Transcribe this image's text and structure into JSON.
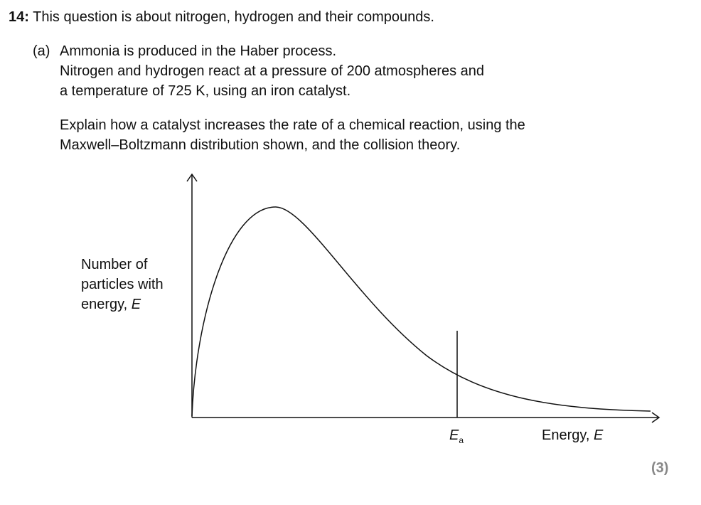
{
  "question": {
    "number": "14:",
    "stem": "This question is about nitrogen, hydrogen and their compounds.",
    "part": {
      "label": "(a)",
      "lines": [
        "Ammonia is produced in the Haber process.",
        "Nitrogen and hydrogen react at a pressure of 200 atmospheres and",
        "a temperature of 725 K, using an iron catalyst."
      ],
      "task": [
        "Explain how a catalyst increases the rate of a chemical reaction, using the",
        "Maxwell–Boltzmann distribution shown, and the collision theory."
      ],
      "marks": "(3)"
    }
  },
  "diagram": {
    "y_label": [
      "Number of",
      "particles with",
      "energy, "
    ],
    "y_label_symbol": "E",
    "ea_symbol": "E",
    "ea_subscript": "a",
    "x_label": "Energy, ",
    "x_label_symbol": "E"
  }
}
